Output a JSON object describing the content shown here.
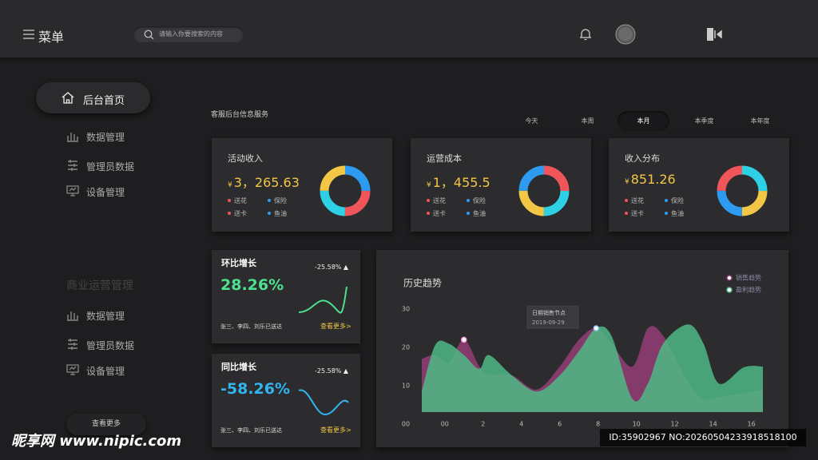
{
  "header": {
    "menu": "菜单",
    "search_placeholder": "请输入你要搜索的内容"
  },
  "sidebar": {
    "home": "后台首页",
    "group1": [
      "数据管理",
      "管理员数据",
      "设备管理"
    ],
    "section": "商业运营管理",
    "group2": [
      "数据管理",
      "管理员数据",
      "设备管理"
    ],
    "more": "查看更多"
  },
  "main": {
    "title": "客服后台信息服务",
    "tabs": [
      "今天",
      "本周",
      "本月",
      "本季度",
      "本年度"
    ],
    "active_tab": 2,
    "cards": [
      {
        "title": "活动收入",
        "currency": "¥",
        "amount": "3，265.63",
        "legend": [
          "送花",
          "保险",
          "送卡",
          "鱼油"
        ]
      },
      {
        "title": "运营成本",
        "currency": "¥",
        "amount": "1，455.5",
        "legend": [
          "送花",
          "保险",
          "送卡",
          "鱼油"
        ]
      },
      {
        "title": "收入分布",
        "currency": "¥",
        "amount": "851.26",
        "legend": [
          "送花",
          "保险",
          "送卡",
          "鱼油"
        ]
      }
    ],
    "growth": [
      {
        "title": "环比增长",
        "change": "-25.58% ▲",
        "value": "28.26%",
        "color": "#4ce08f",
        "note": "张三、李四、刘乐已送达",
        "link": "查看更多>"
      },
      {
        "title": "同比增长",
        "change": "-25.58% ▲",
        "value": "-58.26%",
        "color": "#32b4f0",
        "note": "张三、李四、刘乐已送达",
        "link": "查看更多>"
      }
    ]
  },
  "chart_data": {
    "type": "area",
    "title": "历史趋势",
    "x": [
      -1.2,
      -0.5,
      0.2,
      1,
      1.8,
      2.3,
      3.5,
      4.8,
      6,
      7,
      7.9,
      8.7,
      9.8,
      10.6,
      11.4,
      12.7,
      13.5,
      14.3,
      15.6,
      16.6
    ],
    "series": [
      {
        "name": "销售趋势",
        "color": "#8e3d72",
        "values": [
          17,
          18,
          16,
          22,
          15,
          13,
          12.7,
          9,
          15,
          22,
          25,
          21,
          15,
          25,
          23,
          11,
          6.5,
          7,
          8,
          9
        ]
      },
      {
        "name": "盈利趋势",
        "color": "#4dba85",
        "values": [
          8.5,
          20.6,
          21,
          18,
          14.4,
          18,
          12.7,
          8.5,
          12.7,
          19,
          25,
          23,
          6.5,
          10.6,
          21,
          26,
          21,
          10.6,
          14.8,
          15
        ]
      }
    ],
    "xlim": [
      -1.2,
      16.6
    ],
    "ylim": [
      0,
      30
    ],
    "xticks": [
      {
        "value": 0,
        "label": "00"
      },
      2,
      4,
      6,
      8,
      10,
      12,
      14,
      16
    ],
    "yticks": [
      {
        "value": 0,
        "label": "00"
      },
      10,
      20,
      30
    ],
    "tooltip": {
      "title": "日期销售节点",
      "date": "2019-09-29"
    }
  },
  "watermark": {
    "site": "昵享网 www.nipic.com",
    "id": "ID:35902967 NO:20260504233918518100"
  }
}
